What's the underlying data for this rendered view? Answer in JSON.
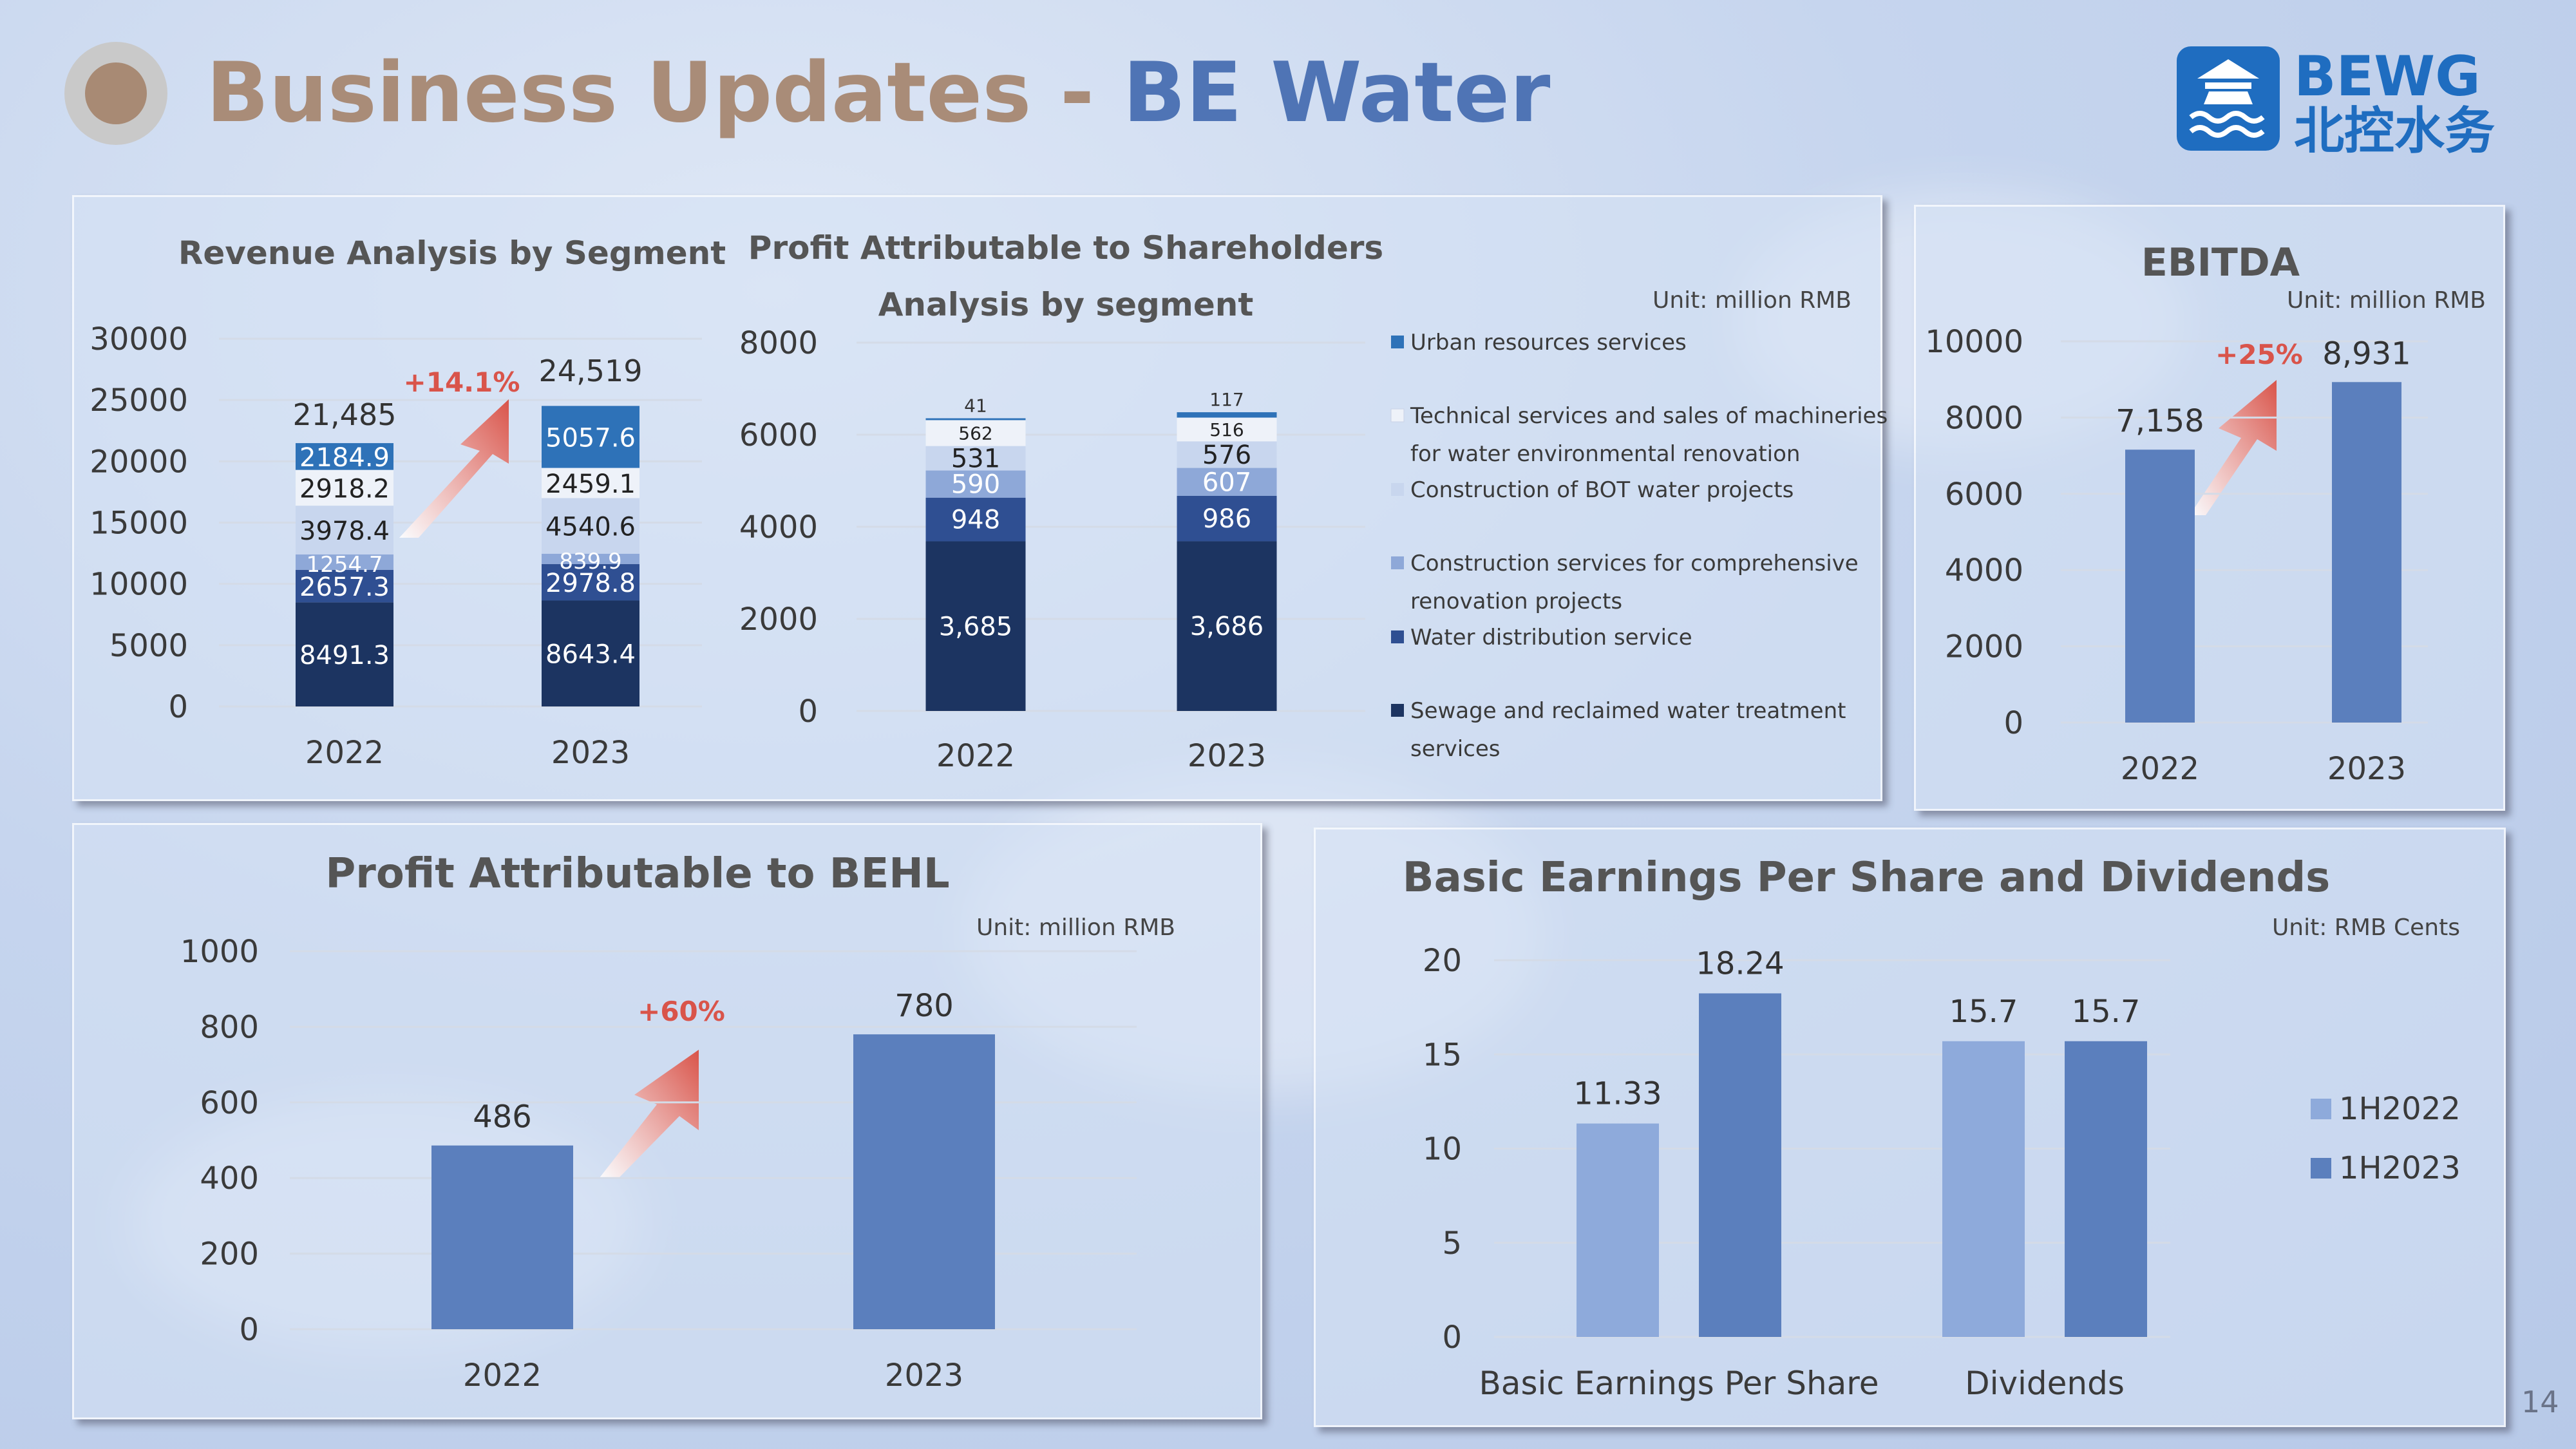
{
  "page": {
    "title_part1": "Business Updates",
    "title_sep": " - ",
    "title_part2": "BE Water",
    "logo": {
      "icon": "temple-waves-icon",
      "en": "BEWG",
      "cn": "北控水务",
      "color": "#1f6dc0"
    },
    "page_number": "14"
  },
  "colors": {
    "navy": "#1c3461",
    "blue_dark": "#2f4f92",
    "blue_mid": "#8ea8d8",
    "blue_light": "#c8d6ee",
    "white_seg": "#eef2f9",
    "blue_urban": "#2e72b8",
    "bar_main": "#5b7fbd",
    "bar_light": "#8eaadb",
    "axis_text": "#3a3a3a",
    "arrow_red": "#d9544a",
    "growth_text": "#d9544a"
  },
  "chart_data": [
    {
      "id": "revenue",
      "type": "bar",
      "stacked": true,
      "title": "Revenue Analysis by Segment",
      "categories": [
        "2022",
        "2023"
      ],
      "ylim": [
        0,
        30000
      ],
      "yticks": [
        "0",
        "5000",
        "10000",
        "15000",
        "20000",
        "25000",
        "30000"
      ],
      "series": [
        {
          "values": [
            8491.3,
            8643.4
          ],
          "labels": [
            "8491.3",
            "8643.4"
          ],
          "color": "#1c3461"
        },
        {
          "values": [
            2657.3,
            2978.8
          ],
          "labels": [
            "2657.3",
            "2978.8"
          ],
          "color": "#2f4f92"
        },
        {
          "values": [
            1254.7,
            839.9
          ],
          "labels": [
            "1254.7",
            "839.9"
          ],
          "color": "#8ea8d8"
        },
        {
          "values": [
            3978.4,
            4540.6
          ],
          "labels": [
            "3978.4",
            "4540.6"
          ],
          "color": "#c8d6ee"
        },
        {
          "values": [
            2918.2,
            2459.1
          ],
          "labels": [
            "2918.2",
            "2459.1"
          ],
          "color": "#eef2f9"
        },
        {
          "values": [
            2184.9,
            5057.6
          ],
          "labels": [
            "2184.9",
            "5057.6"
          ],
          "color": "#2e72b8"
        }
      ],
      "totals": [
        "21,485",
        "24,519"
      ],
      "growth": "+14.1%"
    },
    {
      "id": "profit_segment",
      "type": "bar",
      "stacked": true,
      "title_line1": "Profit Attributable to Shareholders",
      "title_line2": "Analysis by segment",
      "unit": "Unit: million RMB",
      "categories": [
        "2022",
        "2023"
      ],
      "ylim": [
        0,
        8000
      ],
      "yticks": [
        "0",
        "2000",
        "4000",
        "6000",
        "8000"
      ],
      "series": [
        {
          "name": "Sewage and reclaimed water treatment services",
          "values": [
            3685,
            3686
          ],
          "labels": [
            "3,685",
            "3,686"
          ],
          "color": "#1c3461"
        },
        {
          "name": "Water distribution service",
          "values": [
            948,
            986
          ],
          "labels": [
            "948",
            "986"
          ],
          "color": "#2f4f92"
        },
        {
          "name": "Construction services for comprehensive renovation projects",
          "values": [
            590,
            607
          ],
          "labels": [
            "590",
            "607"
          ],
          "color": "#8ea8d8"
        },
        {
          "name": "Construction of BOT water projects",
          "values": [
            531,
            576
          ],
          "labels": [
            "531",
            "576"
          ],
          "color": "#c8d6ee"
        },
        {
          "name": "Technical services and sales of machineries for water environmental renovation",
          "values": [
            562,
            516
          ],
          "labels": [
            "562",
            "516"
          ],
          "color": "#eef2f9"
        },
        {
          "name": "Urban resources services",
          "values": [
            41,
            117
          ],
          "labels": [
            "41",
            "117"
          ],
          "color": "#2e72b8"
        }
      ],
      "legend": [
        {
          "line1": "Urban resources services",
          "line2": "",
          "color": "#2e72b8"
        },
        {
          "line1": "Technical services and sales of machineries",
          "line2": "for water environmental renovation",
          "color": "#eef2f9"
        },
        {
          "line1": "Construction of BOT water projects",
          "line2": "",
          "color": "#c8d6ee"
        },
        {
          "line1": "Construction services for comprehensive",
          "line2": "renovation projects",
          "color": "#8ea8d8"
        },
        {
          "line1": "Water distribution service",
          "line2": "",
          "color": "#2f4f92"
        },
        {
          "line1": "Sewage and reclaimed water treatment",
          "line2": "services",
          "color": "#1c3461"
        }
      ]
    },
    {
      "id": "ebitda",
      "type": "bar",
      "title": "EBITDA",
      "unit": "Unit: million RMB",
      "categories": [
        "2022",
        "2023"
      ],
      "values": [
        7158,
        8931
      ],
      "labels": [
        "7,158",
        "8,931"
      ],
      "ylim": [
        0,
        10000
      ],
      "yticks": [
        "0",
        "2000",
        "4000",
        "6000",
        "8000",
        "10000"
      ],
      "growth": "+25%"
    },
    {
      "id": "profit_behl",
      "type": "bar",
      "title": "Profit Attributable to BEHL",
      "unit": "Unit: million RMB",
      "categories": [
        "2022",
        "2023"
      ],
      "values": [
        486,
        780
      ],
      "labels": [
        "486",
        "780"
      ],
      "ylim": [
        0,
        1000
      ],
      "yticks": [
        "0",
        "200",
        "400",
        "600",
        "800",
        "1000"
      ],
      "growth": "+60%"
    },
    {
      "id": "eps_div",
      "type": "bar",
      "title": "Basic Earnings Per Share and Dividends",
      "unit": "Unit: RMB Cents",
      "categories": [
        "Basic Earnings Per Share",
        "Dividends"
      ],
      "ylim": [
        0,
        20
      ],
      "yticks": [
        "0",
        "5",
        "10",
        "15",
        "20"
      ],
      "series": [
        {
          "name": "1H2022",
          "values": [
            11.33,
            15.7
          ],
          "labels": [
            "11.33",
            "15.7"
          ],
          "color": "#8eaadb"
        },
        {
          "name": "1H2023",
          "values": [
            18.24,
            15.7
          ],
          "labels": [
            "18.24",
            "15.7"
          ],
          "color": "#5b7fbd"
        }
      ],
      "legend_placement": "right"
    }
  ]
}
